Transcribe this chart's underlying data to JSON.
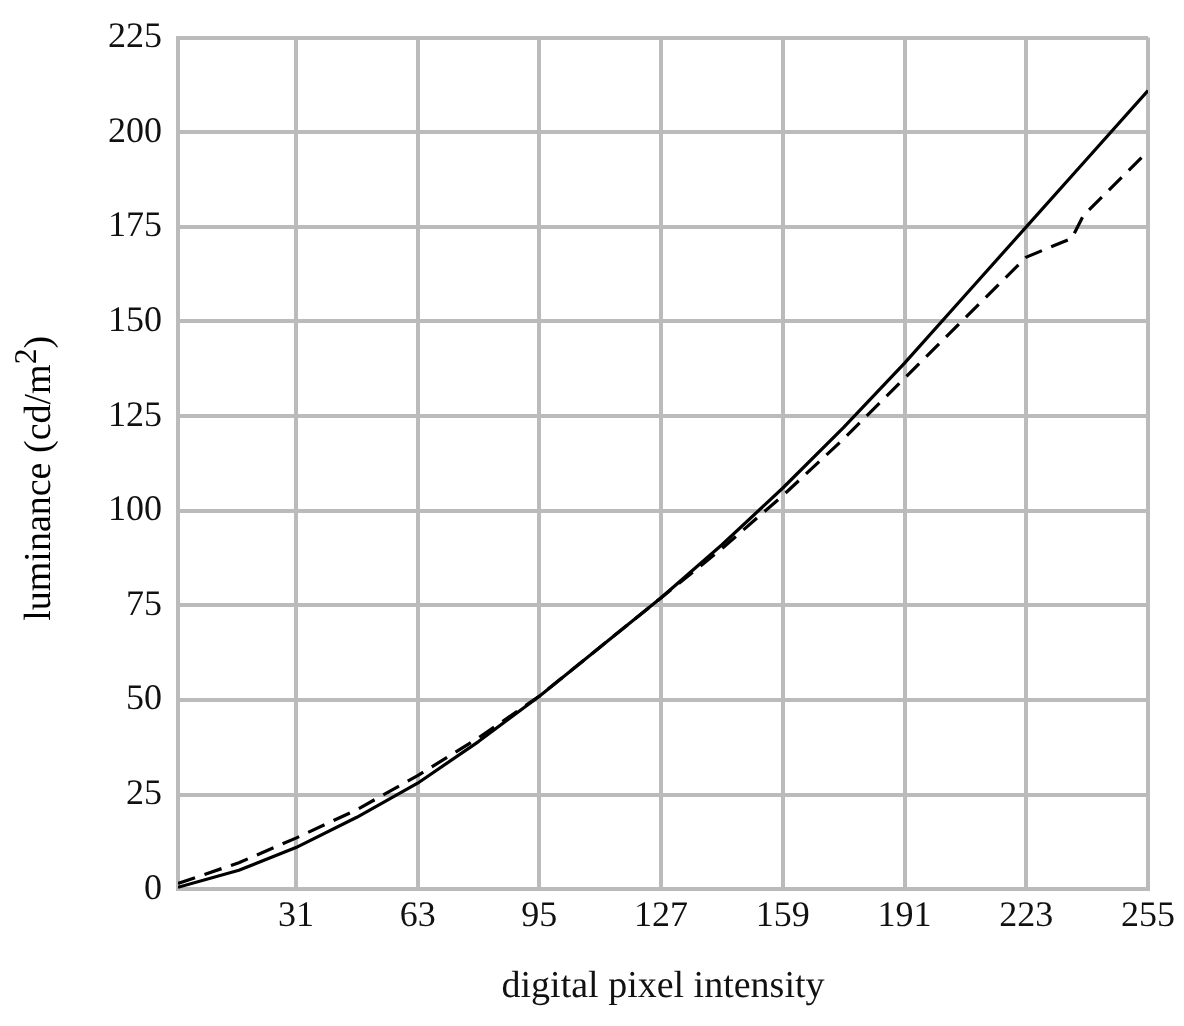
{
  "chart_data": {
    "type": "line",
    "xlabel": "digital pixel intensity",
    "ylabel": "luminance (cd/m$^{2}$)",
    "xlim": [
      0,
      255
    ],
    "xticks": [
      31,
      63,
      95,
      127,
      159,
      191,
      223,
      255
    ],
    "ylim": [
      0,
      225
    ],
    "yticks": [
      0,
      25,
      50,
      75,
      100,
      125,
      150,
      175,
      200,
      225
    ],
    "grid": true,
    "legend": false,
    "marker": "none",
    "series": [
      {
        "color": "#000000",
        "line_style": "solid",
        "x": [
          0,
          16,
          31,
          47,
          63,
          79,
          95,
          111,
          127,
          143,
          159,
          175,
          191,
          207,
          223,
          239,
          255
        ],
        "values": [
          0.5,
          5,
          11,
          19,
          28,
          39,
          51,
          64,
          77,
          91,
          106,
          122,
          139,
          157,
          175,
          193,
          211
        ]
      },
      {
        "color": "#000000",
        "line_style": "dashed",
        "x": [
          0,
          16,
          31,
          47,
          63,
          79,
          95,
          111,
          127,
          143,
          159,
          175,
          191,
          207,
          223,
          235,
          238,
          255
        ],
        "values": [
          1.5,
          7,
          13.5,
          21,
          30,
          40,
          51,
          64,
          77,
          90,
          104,
          119,
          135,
          151,
          167,
          172,
          178,
          195
        ]
      }
    ]
  }
}
